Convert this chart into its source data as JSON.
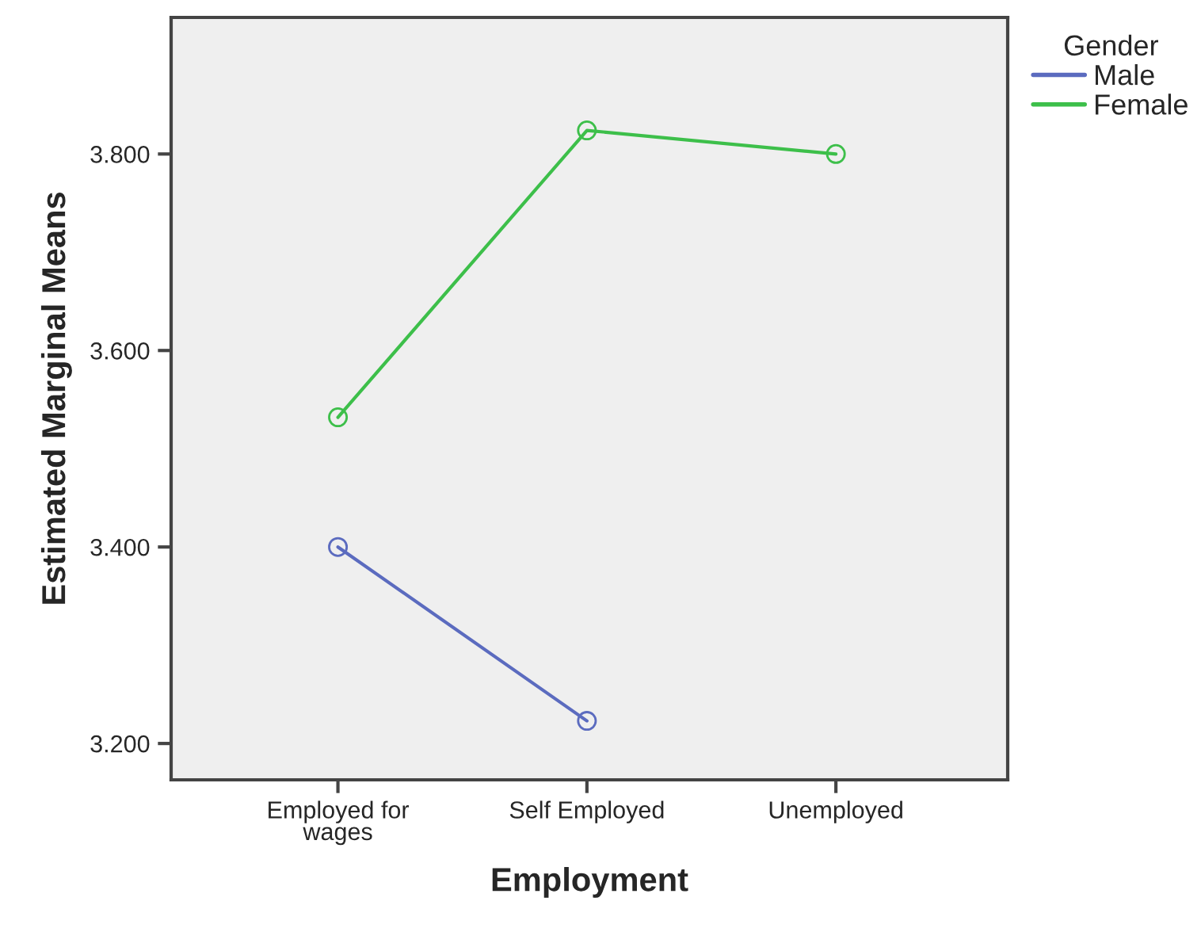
{
  "chart_data": {
    "type": "line",
    "xlabel": "Employment",
    "ylabel": "Estimated Marginal Means",
    "legend_title": "Gender",
    "categories": [
      "Employed for\nwages",
      "Self Employed",
      "Unemployed"
    ],
    "series": [
      {
        "name": "Male",
        "color": "#5b6bbf",
        "values": [
          3.4,
          3.223,
          null
        ]
      },
      {
        "name": "Female",
        "color": "#3dbf4a",
        "values": [
          3.532,
          3.824,
          3.8
        ]
      }
    ],
    "ylim": [
      3.163,
      3.939
    ],
    "yticks": [
      {
        "value": 3.2,
        "label": "3.200"
      },
      {
        "value": 3.4,
        "label": "3.400"
      },
      {
        "value": 3.6,
        "label": "3.600"
      },
      {
        "value": 3.8,
        "label": "3.800"
      }
    ],
    "marker": "circle",
    "line_style": "solid",
    "grid": false,
    "legend": "top right"
  }
}
